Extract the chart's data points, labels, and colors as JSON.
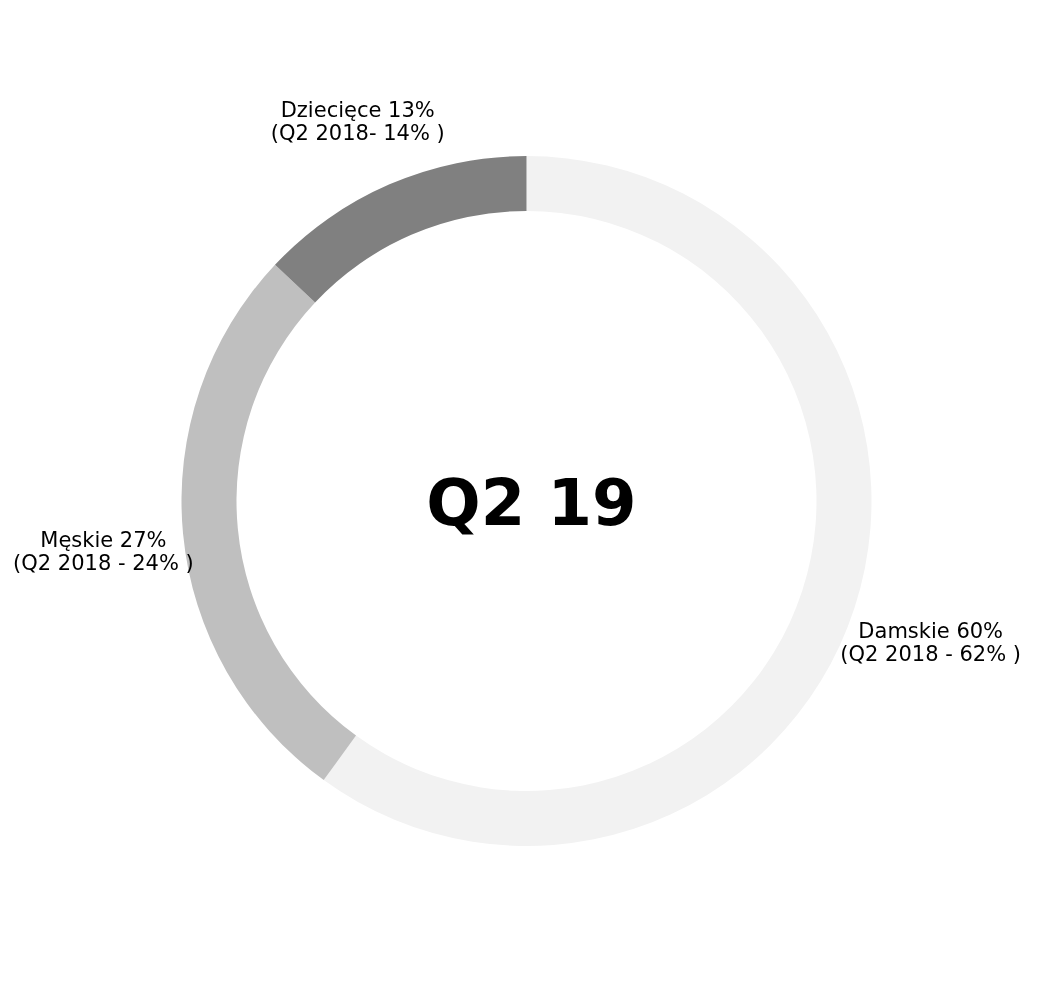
{
  "chart_data": {
    "type": "donut",
    "title": "Q2 19",
    "categories": [
      "Damskie",
      "Męskie",
      "Dziecięce"
    ],
    "values": [
      60,
      27,
      13
    ],
    "value_labels": [
      "60%",
      "27%",
      "13%"
    ],
    "colors": [
      "#f2f2f2",
      "#bfbfbf",
      "#808080"
    ],
    "annotations": [
      "(Q2 2018 - 62% )",
      "(Q2 2018 - 24% )",
      "(Q2 2018- 14% )"
    ],
    "legend": false
  }
}
